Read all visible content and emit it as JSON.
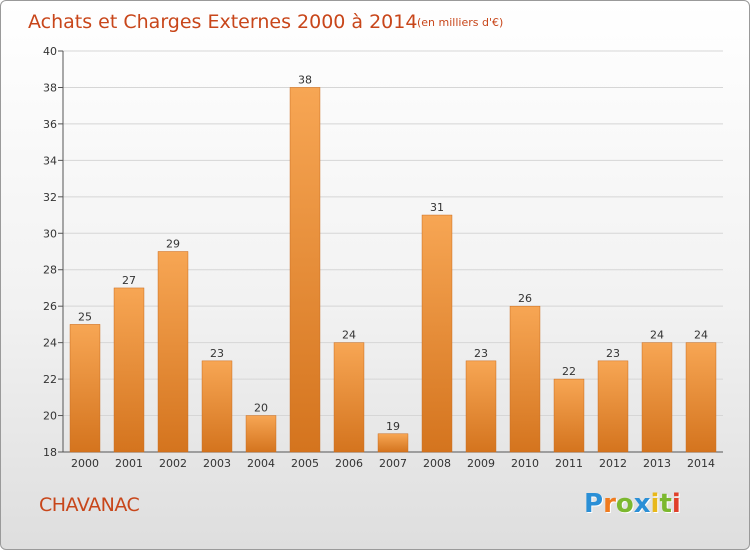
{
  "chart_data": {
    "type": "bar",
    "title": "Achats et Charges Externes 2000 à 2014",
    "subtitle": "(en milliers d'€)",
    "categories": [
      "2000",
      "2001",
      "2002",
      "2003",
      "2004",
      "2005",
      "2006",
      "2007",
      "2008",
      "2009",
      "2010",
      "2011",
      "2012",
      "2013",
      "2014"
    ],
    "values": [
      25,
      27,
      29,
      23,
      20,
      38,
      24,
      19,
      31,
      23,
      26,
      22,
      23,
      24,
      24
    ],
    "ylim": [
      18,
      40
    ],
    "yticks": [
      18,
      20,
      22,
      24,
      26,
      28,
      30,
      32,
      34,
      36,
      38,
      40
    ],
    "grid": true,
    "xlabel": "",
    "ylabel": "",
    "colors": {
      "bar_light": "#f7a654",
      "bar_dark": "#d4741e",
      "title": "#c8461a"
    }
  },
  "commune": "CHAVANAC",
  "logo": {
    "text": "Proxiti",
    "letters": [
      {
        "ch": "P",
        "color": "#2a8fd6"
      },
      {
        "ch": "r",
        "color": "#f07b1e"
      },
      {
        "ch": "o",
        "color": "#7cb82f"
      },
      {
        "ch": "x",
        "color": "#2a8fd6"
      },
      {
        "ch": "i",
        "color": "#e8b81a"
      },
      {
        "ch": "t",
        "color": "#7cb82f"
      },
      {
        "ch": "i",
        "color": "#e0402a"
      }
    ]
  }
}
